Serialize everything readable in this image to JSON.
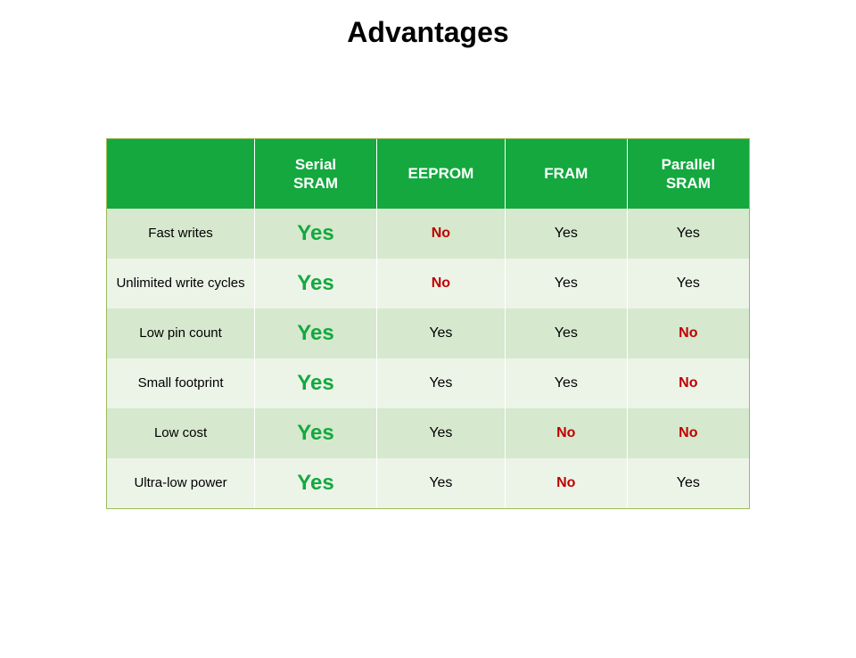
{
  "title": "Advantages",
  "table": {
    "type": "table",
    "header_bg": "#14a83f",
    "header_text_color": "#ffffff",
    "band_a_bg": "#d6e8ce",
    "band_b_bg": "#ecf4e8",
    "border_color": "#9bbb59",
    "big_yes_color": "#14a83f",
    "no_color": "#c00000",
    "columns": [
      "",
      "Serial\nSRAM",
      "EEPROM",
      "FRAM",
      "Parallel\nSRAM"
    ],
    "rows": [
      {
        "label": "Fast writes",
        "cells": [
          "BigYes",
          "No",
          "Yes",
          "Yes"
        ]
      },
      {
        "label": "Unlimited write cycles",
        "cells": [
          "BigYes",
          "No",
          "Yes",
          "Yes"
        ]
      },
      {
        "label": "Low pin count",
        "cells": [
          "BigYes",
          "Yes",
          "Yes",
          "No"
        ]
      },
      {
        "label": "Small footprint",
        "cells": [
          "BigYes",
          "Yes",
          "Yes",
          "No"
        ]
      },
      {
        "label": "Low cost",
        "cells": [
          "BigYes",
          "Yes",
          "No",
          "No"
        ]
      },
      {
        "label": "Ultra-low power",
        "cells": [
          "BigYes",
          "Yes",
          "No",
          "Yes"
        ]
      }
    ]
  },
  "tokens": {
    "BigYes": "Yes",
    "Yes": "Yes",
    "No": "No"
  }
}
